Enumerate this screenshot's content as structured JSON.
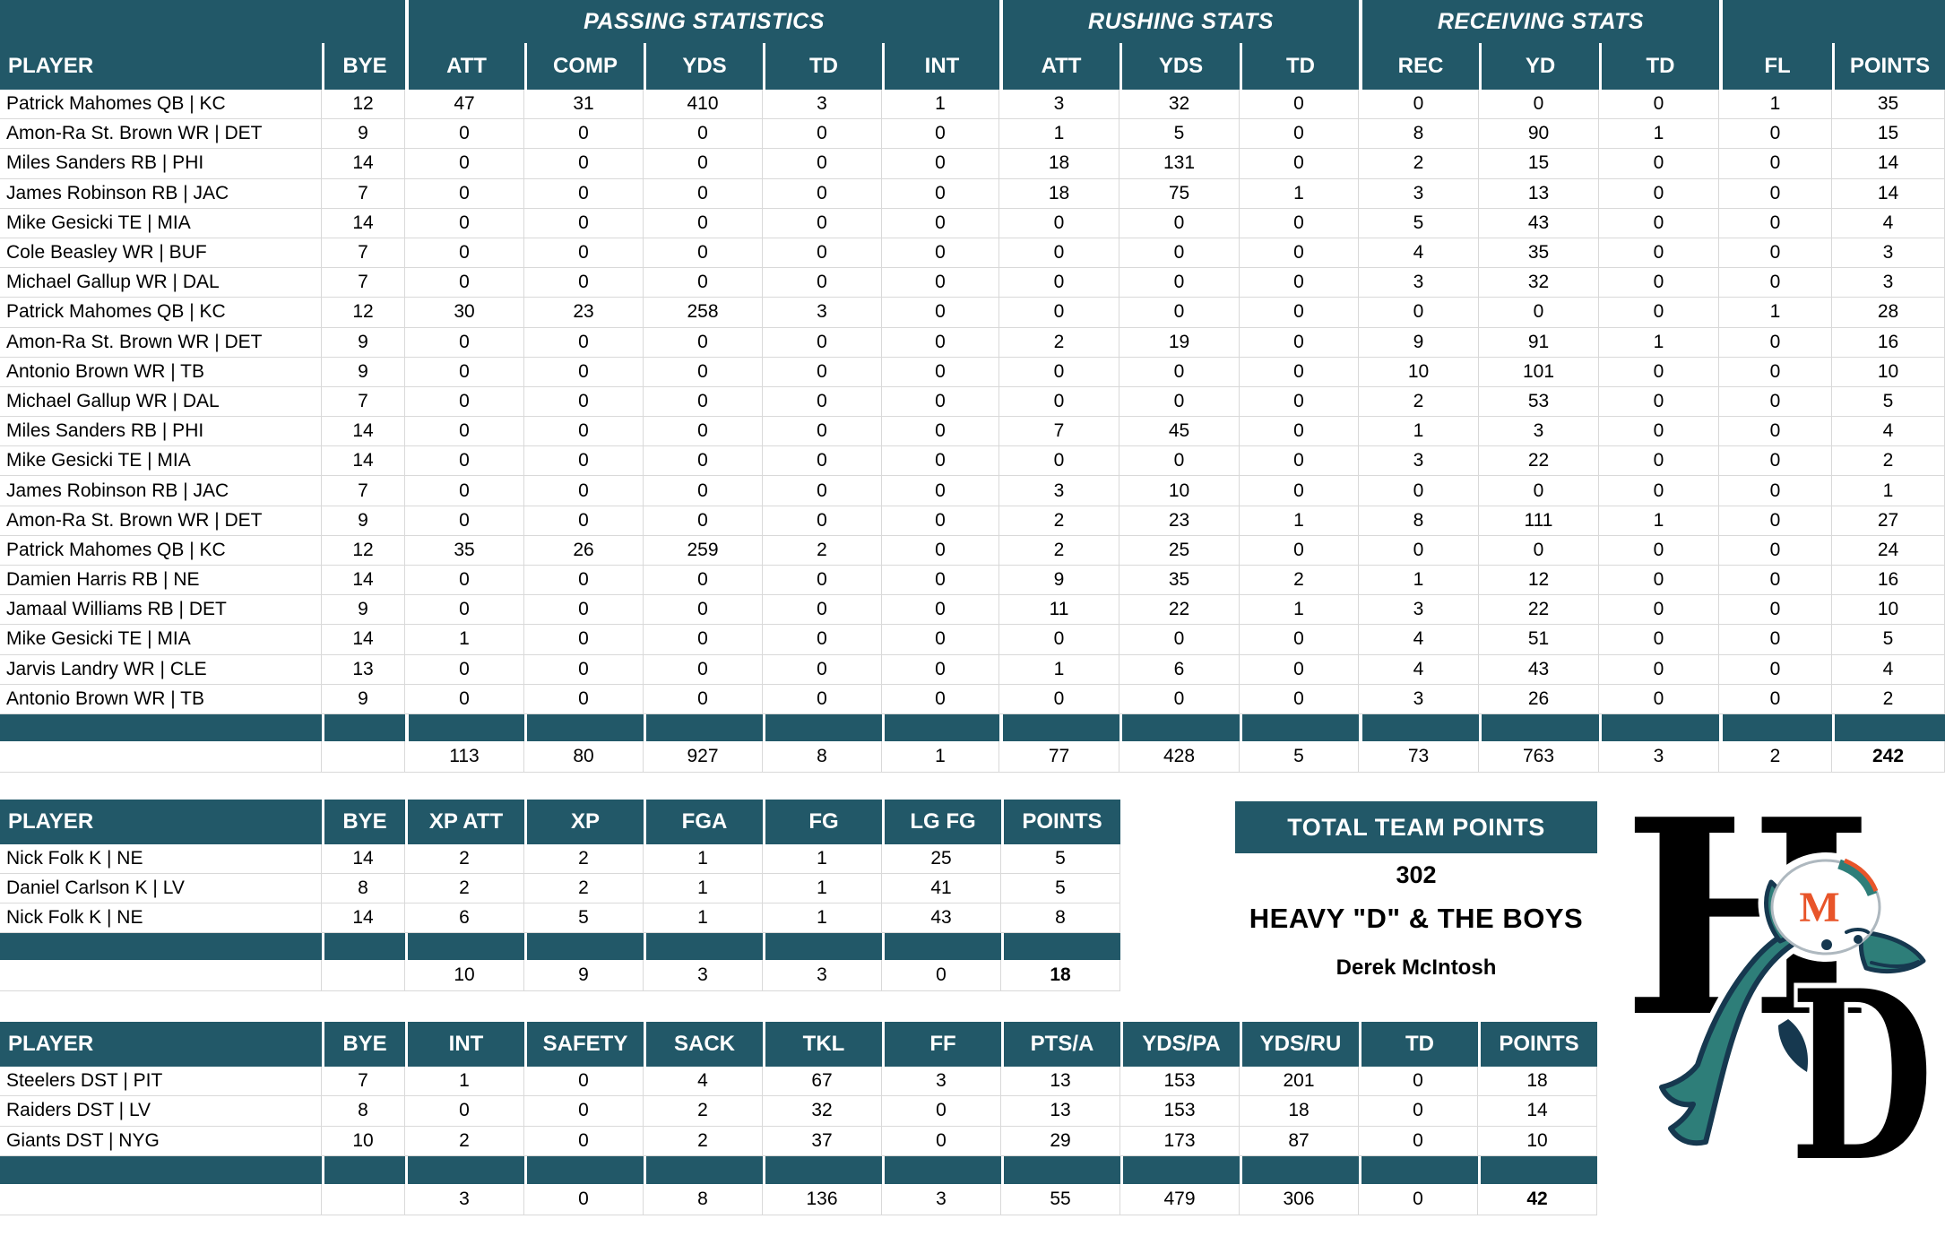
{
  "theme": {
    "header_teal": "#225868",
    "grid_line": "#d9d9d9",
    "header_text": "#ffffff",
    "body_text": "#000000",
    "dolphin_teal": "#2E7E79",
    "dolphin_navy": "#16384F",
    "helmet_orange": "#E8552A"
  },
  "player_table": {
    "group_headers": [
      {
        "label": "",
        "span": 2
      },
      {
        "label": "PASSING STATISTICS",
        "span": 5
      },
      {
        "label": "RUSHING STATS",
        "span": 3
      },
      {
        "label": "RECEIVING STATS",
        "span": 3
      },
      {
        "label": "",
        "span": 2
      }
    ],
    "columns": [
      "PLAYER",
      "BYE",
      "ATT",
      "COMP",
      "YDS",
      "TD",
      "INT",
      "ATT",
      "YDS",
      "TD",
      "REC",
      "YD",
      "TD",
      "FL",
      "POINTS"
    ],
    "rows": [
      [
        "Patrick Mahomes QB | KC",
        "12",
        "47",
        "31",
        "410",
        "3",
        "1",
        "3",
        "32",
        "0",
        "0",
        "0",
        "0",
        "1",
        "35"
      ],
      [
        "Amon-Ra St. Brown WR | DET",
        "9",
        "0",
        "0",
        "0",
        "0",
        "0",
        "1",
        "5",
        "0",
        "8",
        "90",
        "1",
        "0",
        "15"
      ],
      [
        "Miles Sanders RB | PHI",
        "14",
        "0",
        "0",
        "0",
        "0",
        "0",
        "18",
        "131",
        "0",
        "2",
        "15",
        "0",
        "0",
        "14"
      ],
      [
        "James Robinson RB | JAC",
        "7",
        "0",
        "0",
        "0",
        "0",
        "0",
        "18",
        "75",
        "1",
        "3",
        "13",
        "0",
        "0",
        "14"
      ],
      [
        "Mike Gesicki TE | MIA",
        "14",
        "0",
        "0",
        "0",
        "0",
        "0",
        "0",
        "0",
        "0",
        "5",
        "43",
        "0",
        "0",
        "4"
      ],
      [
        "Cole Beasley WR | BUF",
        "7",
        "0",
        "0",
        "0",
        "0",
        "0",
        "0",
        "0",
        "0",
        "4",
        "35",
        "0",
        "0",
        "3"
      ],
      [
        "Michael Gallup WR | DAL",
        "7",
        "0",
        "0",
        "0",
        "0",
        "0",
        "0",
        "0",
        "0",
        "3",
        "32",
        "0",
        "0",
        "3"
      ],
      [
        "Patrick Mahomes QB | KC",
        "12",
        "30",
        "23",
        "258",
        "3",
        "0",
        "0",
        "0",
        "0",
        "0",
        "0",
        "0",
        "1",
        "28"
      ],
      [
        "Amon-Ra St. Brown WR | DET",
        "9",
        "0",
        "0",
        "0",
        "0",
        "0",
        "2",
        "19",
        "0",
        "9",
        "91",
        "1",
        "0",
        "16"
      ],
      [
        "Antonio Brown WR | TB",
        "9",
        "0",
        "0",
        "0",
        "0",
        "0",
        "0",
        "0",
        "0",
        "10",
        "101",
        "0",
        "0",
        "10"
      ],
      [
        "Michael Gallup WR | DAL",
        "7",
        "0",
        "0",
        "0",
        "0",
        "0",
        "0",
        "0",
        "0",
        "2",
        "53",
        "0",
        "0",
        "5"
      ],
      [
        "Miles Sanders RB | PHI",
        "14",
        "0",
        "0",
        "0",
        "0",
        "0",
        "7",
        "45",
        "0",
        "1",
        "3",
        "0",
        "0",
        "4"
      ],
      [
        "Mike Gesicki TE | MIA",
        "14",
        "0",
        "0",
        "0",
        "0",
        "0",
        "0",
        "0",
        "0",
        "3",
        "22",
        "0",
        "0",
        "2"
      ],
      [
        "James Robinson RB | JAC",
        "7",
        "0",
        "0",
        "0",
        "0",
        "0",
        "3",
        "10",
        "0",
        "0",
        "0",
        "0",
        "0",
        "1"
      ],
      [
        "Amon-Ra St. Brown WR | DET",
        "9",
        "0",
        "0",
        "0",
        "0",
        "0",
        "2",
        "23",
        "1",
        "8",
        "111",
        "1",
        "0",
        "27"
      ],
      [
        "Patrick Mahomes QB | KC",
        "12",
        "35",
        "26",
        "259",
        "2",
        "0",
        "2",
        "25",
        "0",
        "0",
        "0",
        "0",
        "0",
        "24"
      ],
      [
        "Damien Harris RB | NE",
        "14",
        "0",
        "0",
        "0",
        "0",
        "0",
        "9",
        "35",
        "2",
        "1",
        "12",
        "0",
        "0",
        "16"
      ],
      [
        "Jamaal Williams RB | DET",
        "9",
        "0",
        "0",
        "0",
        "0",
        "0",
        "11",
        "22",
        "1",
        "3",
        "22",
        "0",
        "0",
        "10"
      ],
      [
        "Mike Gesicki TE | MIA",
        "14",
        "1",
        "0",
        "0",
        "0",
        "0",
        "0",
        "0",
        "0",
        "4",
        "51",
        "0",
        "0",
        "5"
      ],
      [
        "Jarvis Landry WR | CLE",
        "13",
        "0",
        "0",
        "0",
        "0",
        "0",
        "1",
        "6",
        "0",
        "4",
        "43",
        "0",
        "0",
        "4"
      ],
      [
        "Antonio Brown WR | TB",
        "9",
        "0",
        "0",
        "0",
        "0",
        "0",
        "0",
        "0",
        "0",
        "3",
        "26",
        "0",
        "0",
        "2"
      ]
    ],
    "totals": [
      "",
      "",
      "113",
      "80",
      "927",
      "8",
      "1",
      "77",
      "428",
      "5",
      "73",
      "763",
      "3",
      "2",
      "242"
    ]
  },
  "kicker_table": {
    "columns": [
      "PLAYER",
      "BYE",
      "XP ATT",
      "XP",
      "FGA",
      "FG",
      "LG FG",
      "POINTS"
    ],
    "rows": [
      [
        "Nick Folk K | NE",
        "14",
        "2",
        "2",
        "1",
        "1",
        "25",
        "5"
      ],
      [
        "Daniel Carlson K | LV",
        "8",
        "2",
        "2",
        "1",
        "1",
        "41",
        "5"
      ],
      [
        "Nick Folk K | NE",
        "14",
        "6",
        "5",
        "1",
        "1",
        "43",
        "8"
      ]
    ],
    "totals": [
      "",
      "",
      "10",
      "9",
      "3",
      "3",
      "0",
      "18"
    ]
  },
  "dst_table": {
    "columns": [
      "PLAYER",
      "BYE",
      "INT",
      "SAFETY",
      "SACK",
      "TKL",
      "FF",
      "PTS/A",
      "YDS/PA",
      "YDS/RU",
      "TD",
      "POINTS"
    ],
    "rows": [
      [
        "Steelers DST | PIT",
        "7",
        "1",
        "0",
        "4",
        "67",
        "3",
        "13",
        "153",
        "201",
        "0",
        "18"
      ],
      [
        "Raiders DST | LV",
        "8",
        "0",
        "0",
        "2",
        "32",
        "0",
        "13",
        "153",
        "18",
        "0",
        "14"
      ],
      [
        "Giants DST | NYG",
        "10",
        "2",
        "0",
        "2",
        "37",
        "0",
        "29",
        "173",
        "87",
        "0",
        "10"
      ]
    ],
    "totals": [
      "",
      "",
      "3",
      "0",
      "8",
      "136",
      "3",
      "55",
      "479",
      "306",
      "0",
      "42"
    ]
  },
  "team_summary": {
    "title": "TOTAL TEAM POINTS",
    "total_points": "302",
    "team_name": "HEAVY \"D\" & THE BOYS",
    "owner": "Derek McIntosh"
  },
  "logo": {
    "letter_top": "H",
    "letter_bottom": "D",
    "helmet_letter": "M"
  }
}
